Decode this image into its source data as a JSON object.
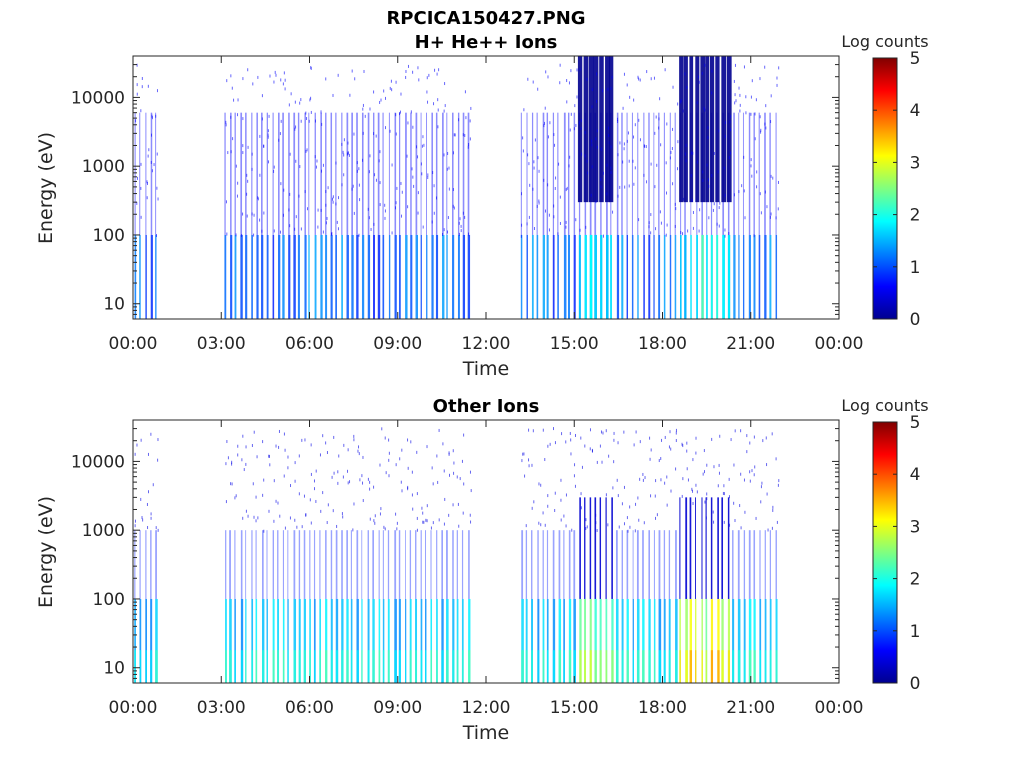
{
  "figure": {
    "filename_title": "RPCICA150427.PNG"
  },
  "chart_data": [
    {
      "type": "heatmap",
      "title": "H+ He++ Ions",
      "xlabel": "Time",
      "ylabel": "Energy (eV)",
      "x_ticks": [
        "00:00",
        "03:00",
        "06:00",
        "09:00",
        "12:00",
        "15:00",
        "18:00",
        "21:00",
        "00:00"
      ],
      "x_range_hours": [
        0,
        24
      ],
      "y_scale": "log",
      "y_ticks": [
        10,
        100,
        1000,
        10000
      ],
      "y_tick_labels": [
        "10",
        "100",
        "1000",
        "10000"
      ],
      "y_range": [
        6,
        40000
      ],
      "colorbar": {
        "label": "Log counts",
        "ticks": [
          "0",
          "1",
          "2",
          "3",
          "4",
          "5"
        ],
        "range": [
          0,
          5
        ],
        "colormap": "jet"
      },
      "data_gaps_hours": [
        [
          0.8,
          3.0
        ],
        [
          11.5,
          13.0
        ],
        [
          21.8,
          24
        ]
      ],
      "intense_intervals_hours": [
        [
          15.0,
          16.3
        ],
        [
          18.5,
          20.2
        ]
      ],
      "intense_energy_range": [
        300,
        40000
      ]
    },
    {
      "type": "heatmap",
      "title": "Other Ions",
      "xlabel": "Time",
      "ylabel": "Energy (eV)",
      "x_ticks": [
        "00:00",
        "03:00",
        "06:00",
        "09:00",
        "12:00",
        "15:00",
        "18:00",
        "21:00",
        "00:00"
      ],
      "x_range_hours": [
        0,
        24
      ],
      "y_scale": "log",
      "y_ticks": [
        10,
        100,
        1000,
        10000
      ],
      "y_tick_labels": [
        "10",
        "100",
        "1000",
        "10000"
      ],
      "y_range": [
        6,
        40000
      ],
      "colorbar": {
        "label": "Log counts",
        "ticks": [
          "0",
          "1",
          "2",
          "3",
          "4",
          "5"
        ],
        "range": [
          0,
          5
        ],
        "colormap": "jet"
      },
      "data_gaps_hours": [
        [
          0.8,
          3.0
        ],
        [
          11.5,
          13.0
        ],
        [
          21.8,
          24
        ]
      ],
      "intense_intervals_hours": [
        [
          15.0,
          16.3
        ],
        [
          18.5,
          20.2
        ]
      ],
      "low_energy_band": [
        6,
        100
      ]
    }
  ]
}
